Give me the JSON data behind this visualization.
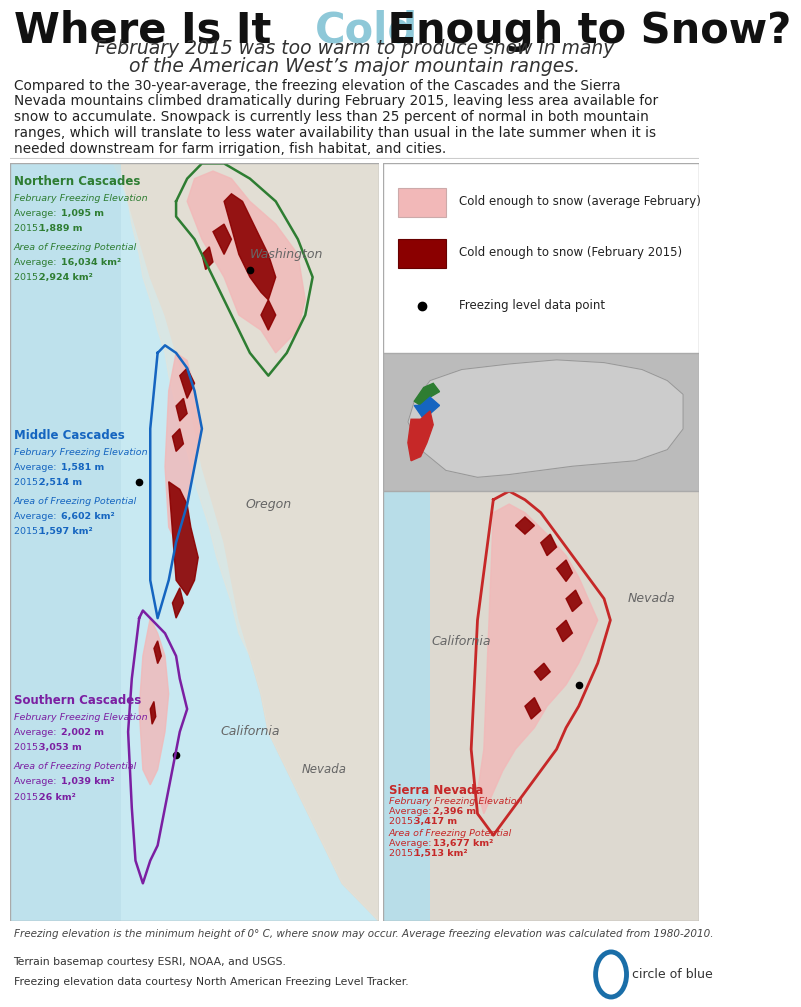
{
  "title_part1": "Where Is It ",
  "title_cold": "Cold",
  "title_part2": " Enough to Snow?",
  "subtitle": "February 2015 was too warm to produce snow in many\nof the American West’s major mountain ranges.",
  "body_text": "Compared to the 30-year-average, the freezing elevation of the Cascades and the Sierra\nNevada mountains climbed dramatically during February 2015, leaving less area available for\nsnow to accumulate. Snowpack is currently less than 25 percent of normal in both mountain\nranges, which will translate to less water availability than usual in the late summer when it is\nneeded downstream for farm irrigation, fish habitat, and cities.",
  "legend_items": [
    {
      "label": "Cold enough to snow (average February)",
      "color": "#f2b8b8"
    },
    {
      "label": "Cold enough to snow (February 2015)",
      "color": "#8b0000"
    },
    {
      "label": "Freezing level data point",
      "color": "#111111"
    }
  ],
  "regions": [
    {
      "name": "Northern Cascades",
      "name_color": "#2e7d32",
      "label_elevation": "February Freezing Elevation",
      "avg_elev": "1,095 m",
      "cur_elev": "1,889 m",
      "label_area": "Area of Freezing Potential",
      "avg_area": "16,034 km²",
      "cur_area": "2,924 km²",
      "text_color": "#2e7d32"
    },
    {
      "name": "Middle Cascades",
      "name_color": "#1565c0",
      "label_elevation": "February Freezing Elevation",
      "avg_elev": "1,581 m",
      "cur_elev": "2,514 m",
      "label_area": "Area of Freezing Potential",
      "avg_area": "6,602 km²",
      "cur_area": "1,597 km²",
      "text_color": "#1565c0"
    },
    {
      "name": "Southern Cascades",
      "name_color": "#7b1fa2",
      "label_elevation": "February Freezing Elevation",
      "avg_elev": "2,002 m",
      "cur_elev": "3,053 m",
      "label_area": "Area of Freezing Potential",
      "avg_area": "1,039 km²",
      "cur_area": "26 km²",
      "text_color": "#7b1fa2"
    },
    {
      "name": "Sierra Nevada",
      "name_color": "#c62828",
      "label_elevation": "February Freezing Elevation",
      "avg_elev": "2,396 m",
      "cur_elev": "3,417 m",
      "label_area": "Area of Freezing Potential",
      "avg_area": "13,677 km²",
      "cur_area": "1,513 km²",
      "text_color": "#c62828"
    }
  ],
  "footnote1": "Freezing elevation is the minimum height of 0° C, where snow may occur. Average freezing elevation was calculated from 1980-2010.",
  "footnote2": "Terrain basemap courtesy ESRI, NOAA, and USGS.",
  "footnote3": "Freezing elevation data courtesy North American Freezing Level Tracker.",
  "circle_of_blue": "circle of blue",
  "bg_color": "#ffffff",
  "map_bg_left": "#c8e6f0",
  "map_bg_right": "#c8e6f0",
  "land_color": "#e8e4dc",
  "title_fontsize": 30,
  "subtitle_fontsize": 13.5,
  "body_fontsize": 10.0,
  "cold_color": "#8ec8d8"
}
